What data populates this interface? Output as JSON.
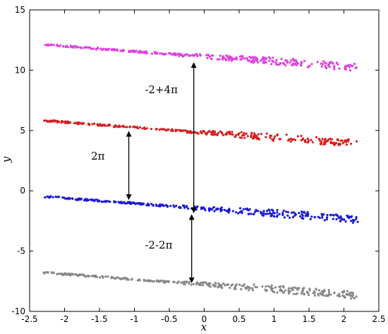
{
  "chart_data": {
    "type": "scatter",
    "title": "",
    "xlabel": "x",
    "ylabel": "y",
    "xlim": [
      -2.5,
      2.5
    ],
    "ylim": [
      -10,
      15
    ],
    "xticks": [
      -2.5,
      -2,
      -1.5,
      -1,
      -0.5,
      0,
      0.5,
      1,
      1.5,
      2,
      2.5
    ],
    "xtick_labels": [
      "-2.5",
      "-2",
      "-1.5",
      "-1",
      "-0.5",
      "0",
      "0.5",
      "1",
      "1.5",
      "2",
      "2.5"
    ],
    "yticks": [
      -10,
      -5,
      0,
      5,
      10,
      15
    ],
    "ytick_labels": [
      "-10",
      "-5",
      "0",
      "5",
      "10",
      "15"
    ],
    "grid": false,
    "series": [
      {
        "color": "#e040e0",
        "x_range": [
          -2.3,
          2.2
        ],
        "y_start": 12.1,
        "y_end": 10.1,
        "spread": 0.6
      },
      {
        "color": "#d81e1e",
        "x_range": [
          -2.3,
          2.2
        ],
        "y_start": 5.8,
        "y_end": 3.8,
        "spread": 0.6
      },
      {
        "color": "#1a1ad8",
        "x_range": [
          -2.3,
          2.2
        ],
        "y_start": -0.5,
        "y_end": -2.5,
        "spread": 0.6
      },
      {
        "color": "#888888",
        "x_range": [
          -2.3,
          2.2
        ],
        "y_start": -6.8,
        "y_end": -8.8,
        "spread": 0.6
      }
    ],
    "annotations": [
      {
        "text": "-2+4π",
        "arrow_x": -0.15,
        "arrow_y": [
          10.6,
          -1.8
        ],
        "text_x": -0.85,
        "text_y": 8.1
      },
      {
        "text": "2π",
        "arrow_x": -1.08,
        "arrow_y": [
          4.9,
          -0.7
        ],
        "text_x": -1.62,
        "text_y": 2.6
      },
      {
        "text": "-2-2π",
        "arrow_x": -0.18,
        "arrow_y": [
          -2.0,
          -7.6
        ],
        "text_x": -0.85,
        "text_y": -4.8
      }
    ]
  }
}
